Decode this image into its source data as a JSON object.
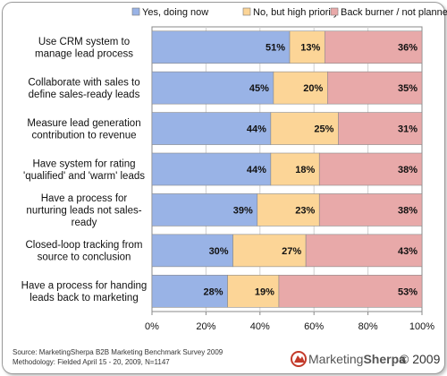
{
  "chart_data": {
    "type": "bar",
    "orientation": "horizontal",
    "stacked": true,
    "title": "",
    "categories": [
      [
        "Use CRM system to",
        "manage lead process"
      ],
      [
        "Collaborate with sales to",
        "define sales-ready leads"
      ],
      [
        "Measure lead generation",
        "contribution to revenue"
      ],
      [
        "Have system for rating",
        "'qualified' and 'warm' leads"
      ],
      [
        "Have a process for",
        "nurturing leads not sales-",
        "ready"
      ],
      [
        "Closed-loop tracking from",
        "source to conclusion"
      ],
      [
        "Have a process for handing",
        "leads back to marketing"
      ]
    ],
    "series": [
      {
        "name": "Yes, doing now",
        "color": "#99b3e6",
        "values": [
          51,
          45,
          44,
          44,
          39,
          30,
          28
        ]
      },
      {
        "name": "No, but high priority",
        "color": "#fcd597",
        "values": [
          13,
          20,
          25,
          18,
          23,
          27,
          19
        ]
      },
      {
        "name": "Back burner / not planned",
        "color": "#e8a9a9",
        "values": [
          36,
          35,
          31,
          38,
          38,
          43,
          53
        ]
      }
    ],
    "value_suffix": "%",
    "xlim": [
      0,
      100
    ],
    "xticks": [
      "0%",
      "20%",
      "40%",
      "60%",
      "80%",
      "100%"
    ],
    "grid": true,
    "legend_position": "top"
  },
  "footer": {
    "source": "Source: MarketingSherpa B2B Marketing Benchmark Survey 2009",
    "methodology": "Methodology: Fielded  April 15 - 20, 2009, N=1147",
    "logo_part1": "Marketing",
    "logo_part2": "Sherpa",
    "copyright": "© 2009"
  }
}
